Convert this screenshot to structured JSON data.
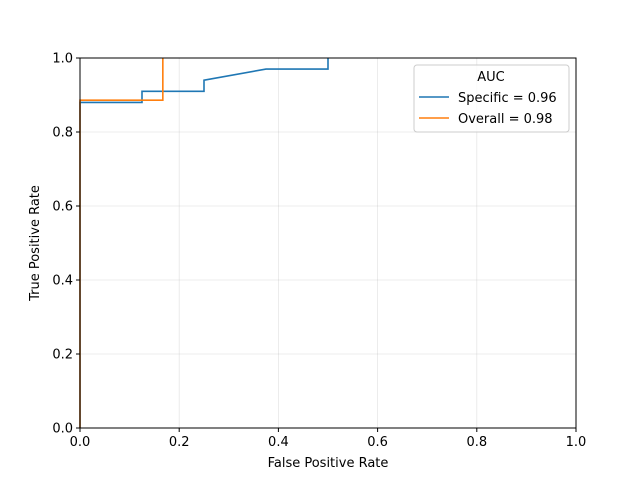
{
  "chart_data": {
    "type": "line",
    "title": "",
    "xlabel": "False Positive Rate",
    "ylabel": "True Positive Rate",
    "xlim": [
      0.0,
      1.0
    ],
    "ylim": [
      0.0,
      1.0
    ],
    "xticks": [
      "0.0",
      "0.2",
      "0.4",
      "0.6",
      "0.8",
      "1.0"
    ],
    "yticks": [
      "0.0",
      "0.2",
      "0.4",
      "0.6",
      "0.8",
      "1.0"
    ],
    "grid": true,
    "legend": {
      "title": "AUC",
      "placement": "top-right"
    },
    "series": [
      {
        "name": "Specific = 0.96",
        "color": "#1f77b4",
        "x": [
          0.0,
          0.0,
          0.125,
          0.125,
          0.25,
          0.25,
          0.375,
          0.5,
          0.5
        ],
        "y": [
          0.0,
          0.88,
          0.88,
          0.91,
          0.91,
          0.94,
          0.97,
          0.97,
          1.0
        ]
      },
      {
        "name": "Overall = 0.98",
        "color": "#ff7f0e",
        "x": [
          0.0,
          0.0,
          0.167,
          0.167
        ],
        "y": [
          0.0,
          0.886,
          0.886,
          1.0
        ]
      }
    ]
  }
}
